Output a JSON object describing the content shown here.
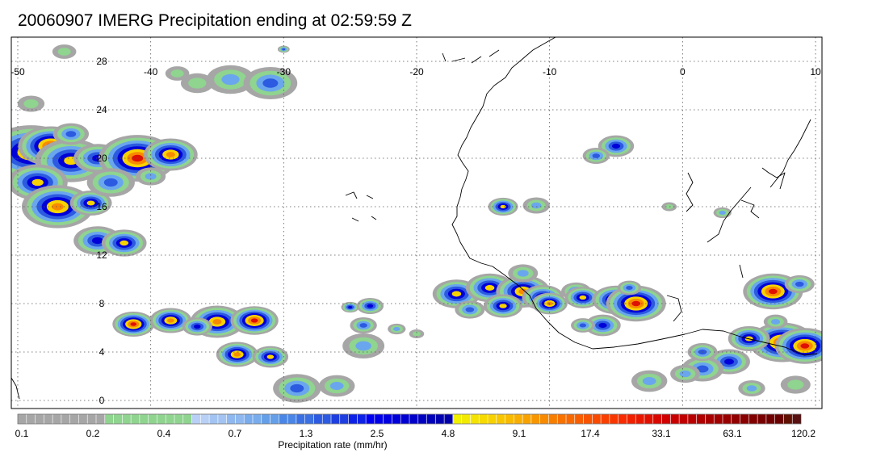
{
  "title": "20060907 IMERG Precipitation ending at 02:59:59 Z",
  "map": {
    "lon_range": [
      -50,
      10
    ],
    "lat_range": [
      -0.5,
      30.5
    ],
    "lon_labels": [
      "-50",
      "-40",
      "-30",
      "-20",
      "-10",
      "0",
      "10"
    ],
    "lat_labels": [
      "28",
      "24",
      "20",
      "16",
      "12",
      "8",
      "4",
      "0"
    ],
    "gridlines": true
  },
  "colorbar": {
    "title": "Precipitation rate (mm/hr)",
    "tick_labels": [
      "0.1",
      "0.2",
      "0.4",
      "0.7",
      "1.3",
      "2.5",
      "4.8",
      "9.1",
      "17.4",
      "33.1",
      "63.1",
      "120.2"
    ],
    "colors": [
      "#a6a6a6",
      "#a6a6a6",
      "#a6a6a6",
      "#a6a6a6",
      "#a6a6a6",
      "#a6a6a6",
      "#a6a6a6",
      "#a6a6a6",
      "#a6a6a6",
      "#a6a6a6",
      "#8fd48f",
      "#8fd48f",
      "#8fd48f",
      "#8fd48f",
      "#8fd48f",
      "#8fd48f",
      "#8fd48f",
      "#8fd48f",
      "#8fd48f",
      "#8fd48f",
      "#b8d0f5",
      "#b8d0f5",
      "#a3c4f2",
      "#a3c4f2",
      "#8eb8ef",
      "#8eb8ef",
      "#79acec",
      "#79acec",
      "#649fe8",
      "#649fe8",
      "#4a86e6",
      "#4a86e6",
      "#3a70e2",
      "#3a70e2",
      "#2c5ae0",
      "#2c5ae0",
      "#1e3ee0",
      "#1e3ee0",
      "#0d22e6",
      "#0d22e6",
      "#0000f0",
      "#0000e8",
      "#0000e0",
      "#0000d8",
      "#0000d0",
      "#0000c8",
      "#0000c0",
      "#0000b8",
      "#0000b0",
      "#0000a8",
      "#f0f000",
      "#f2ea00",
      "#f4e200",
      "#f6da00",
      "#f8d200",
      "#f8c600",
      "#f8ba00",
      "#f8ae00",
      "#f8a200",
      "#f89600",
      "#f88a00",
      "#f87e00",
      "#f87200",
      "#f86800",
      "#f85e00",
      "#f85400",
      "#f84a00",
      "#f84000",
      "#f83600",
      "#f82c00",
      "#f02000",
      "#e81800",
      "#e01000",
      "#d80800",
      "#d00000",
      "#c80000",
      "#c00000",
      "#b80000",
      "#b00000",
      "#a80000",
      "#a00000",
      "#980000",
      "#900000",
      "#880000",
      "#800000",
      "#780000",
      "#700000",
      "#680000",
      "#601000",
      "#581010"
    ]
  },
  "precip_colors": {
    "gray": "#a6a6a6",
    "green": "#8fd48f",
    "light_blue": "#6aa6ee",
    "mid_blue": "#2c5ae0",
    "blue": "#0000d8",
    "yellow": "#f8d200",
    "orange": "#f88a00",
    "red": "#e01000"
  },
  "coastline_color": "#000000"
}
